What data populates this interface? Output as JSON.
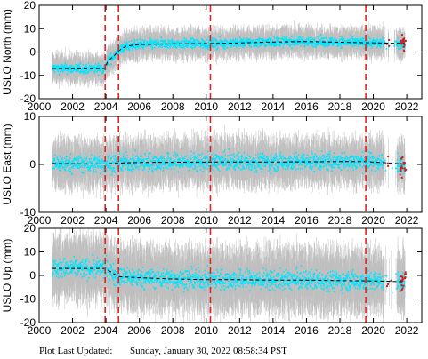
{
  "chart_data": [
    {
      "type": "scatter",
      "name": "north",
      "ylabel": "USLO North (mm)",
      "xlim": [
        2000,
        2022.9
      ],
      "ylim": [
        -20,
        20
      ],
      "yticks": [
        -20,
        -10,
        0,
        10,
        20
      ],
      "xticks": [
        2000,
        2002,
        2004,
        2006,
        2008,
        2010,
        2012,
        2014,
        2016,
        2018,
        2020,
        2022
      ],
      "data_start": 2000.8,
      "data_end": 2021.9,
      "breaks": [
        2003.95,
        2004.75,
        2010.25,
        2019.55
      ],
      "trend": [
        [
          2000.8,
          -7
        ],
        [
          2002.5,
          -7.2
        ],
        [
          2003.95,
          -7
        ],
        [
          2004.1,
          -4
        ],
        [
          2004.5,
          -1.5
        ],
        [
          2004.75,
          0.5
        ],
        [
          2005.2,
          2.5
        ],
        [
          2006,
          3.2
        ],
        [
          2008,
          3.5
        ],
        [
          2010.25,
          3.6
        ],
        [
          2012,
          3.9
        ],
        [
          2014,
          4.3
        ],
        [
          2016,
          4.5
        ],
        [
          2018,
          4.2
        ],
        [
          2019.55,
          4.0
        ],
        [
          2021,
          3.8
        ],
        [
          2021.9,
          3.6
        ]
      ],
      "band_halfwidth": 2.5,
      "error_halfwidth": 5,
      "colors": {
        "data": "#00e5ff",
        "error": "#b3b3b3",
        "break": "#e62020",
        "trend": "#000000",
        "outlier": "#cc2020"
      }
    },
    {
      "type": "scatter",
      "name": "east",
      "ylabel": "USLO East (mm)",
      "xlim": [
        2000,
        2022.9
      ],
      "ylim": [
        -10,
        10
      ],
      "yticks": [
        -10,
        0,
        10
      ],
      "xticks": [
        2000,
        2002,
        2004,
        2006,
        2008,
        2010,
        2012,
        2014,
        2016,
        2018,
        2020,
        2022
      ],
      "data_start": 2000.8,
      "data_end": 2021.9,
      "breaks": [
        2003.95,
        2004.75,
        2010.25,
        2019.55
      ],
      "trend": [
        [
          2000.8,
          0.2
        ],
        [
          2003.95,
          0.1
        ],
        [
          2004.75,
          0.3
        ],
        [
          2006,
          0.4
        ],
        [
          2010.25,
          0.5
        ],
        [
          2014,
          0.5
        ],
        [
          2018,
          0.6
        ],
        [
          2019.55,
          0.6
        ],
        [
          2021,
          0.3
        ],
        [
          2021.9,
          0.0
        ]
      ],
      "band_halfwidth": 2.2,
      "error_halfwidth": 4,
      "colors": {
        "data": "#00e5ff",
        "error": "#b3b3b3",
        "break": "#e62020",
        "trend": "#000000",
        "outlier": "#cc2020"
      }
    },
    {
      "type": "scatter",
      "name": "up",
      "ylabel": "USLO Up (mm)",
      "xlim": [
        2000,
        2022.9
      ],
      "ylim": [
        -20,
        20
      ],
      "yticks": [
        -20,
        -10,
        0,
        10,
        20
      ],
      "xticks": [
        2000,
        2002,
        2004,
        2006,
        2008,
        2010,
        2012,
        2014,
        2016,
        2018,
        2020,
        2022
      ],
      "data_start": 2000.8,
      "data_end": 2021.9,
      "breaks": [
        2003.95,
        2004.75,
        2010.25,
        2019.55
      ],
      "trend": [
        [
          2000.8,
          3
        ],
        [
          2003.95,
          3
        ],
        [
          2004.75,
          -0.5
        ],
        [
          2006,
          -1
        ],
        [
          2008,
          -1.5
        ],
        [
          2010.25,
          -1.8
        ],
        [
          2012,
          -1.8
        ],
        [
          2014,
          -2
        ],
        [
          2016,
          -2
        ],
        [
          2018,
          -2.2
        ],
        [
          2019.55,
          -2.3
        ],
        [
          2021,
          -2.5
        ],
        [
          2021.9,
          -2.7
        ]
      ],
      "band_halfwidth": 5,
      "error_halfwidth": 11,
      "colors": {
        "data": "#00e5ff",
        "error": "#b3b3b3",
        "break": "#e62020",
        "trend": "#000000",
        "outlier": "#cc2020"
      }
    }
  ],
  "footer": {
    "label": "Plot Last Updated:",
    "timestamp": "Sunday, January 30, 2022 08:58:34 PST"
  }
}
